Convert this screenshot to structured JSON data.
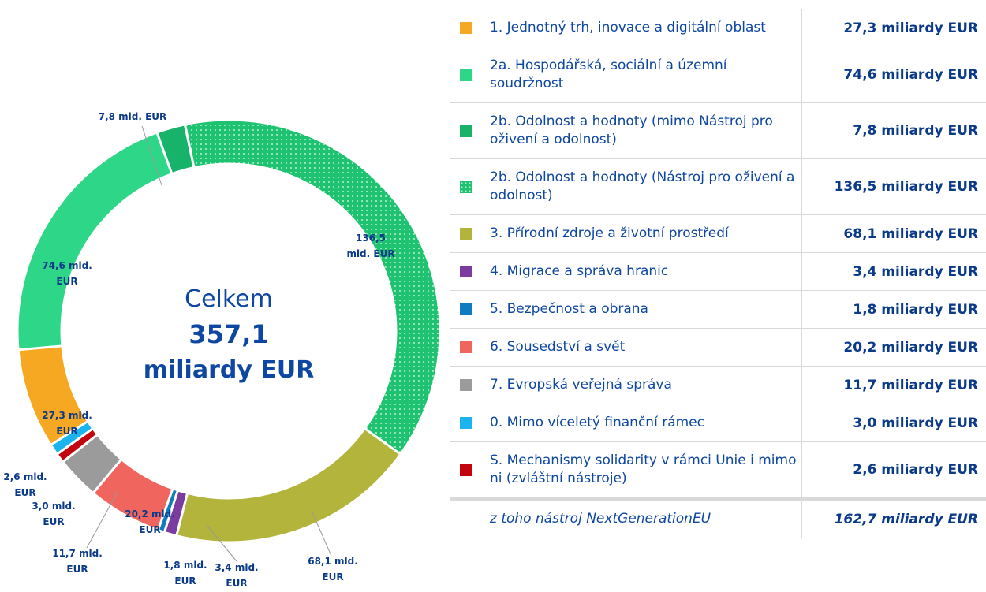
{
  "chart_data": {
    "type": "pie",
    "donut": true,
    "categories": [
      "1. Jednotný trh, inovace a digitální oblast",
      "2a. Hospodářská, sociální a územní soudržnost",
      "2b. Odolnost a hodnoty (mimo Nástroj pro oživení a odolnost)",
      "2b. Odolnost a hodnoty (Nástroj pro oživení a odolnost)",
      "3. Přírodní zdroje a životní prostředí",
      "4. Migrace a správa hranic",
      "5. Bezpečnost a obrana",
      "6. Sousedství a svět",
      "7. Evropská veřejná správa",
      "0. Mimo víceletý finanční rámec",
      "S. Mechanismy solidarity v rámci Unie i mimo ni (zvláštní nástroje)"
    ],
    "values": [
      27.3,
      74.6,
      7.8,
      136.5,
      68.1,
      3.4,
      1.8,
      20.2,
      11.7,
      3.0,
      2.6
    ],
    "value_labels": [
      "27,3 mld. EUR",
      "74,6 mld. EUR",
      "7,8 mld. EUR",
      "136,5 mld. EUR",
      "68,1 mld. EUR",
      "3,4 mld. EUR",
      "1,8 mld. EUR",
      "20,2 mld. EUR",
      "11,7 mld. EUR",
      "3,0 mld. EUR",
      "2,6 mld. EUR"
    ],
    "legend_value_labels": [
      "27,3 miliardy EUR",
      "74,6 miliardy EUR",
      "7,8 miliardy EUR",
      "136,5 miliardy EUR",
      "68,1 miliardy EUR",
      "3,4 miliardy EUR",
      "1,8 miliardy EUR",
      "20,2 miliardy EUR",
      "11,7 miliardy EUR",
      "3,0 miliardy EUR",
      "2,6 miliardy EUR"
    ],
    "colors": [
      "#f7a823",
      "#2ed688",
      "#17b36b",
      "#1fc271",
      "#b3b43b",
      "#7b3b9f",
      "#0f7cc0",
      "#f0665f",
      "#9b9b9b",
      "#1bb4ee",
      "#c2050f"
    ],
    "patterns": [
      null,
      null,
      null,
      "dots",
      null,
      null,
      null,
      null,
      null,
      null,
      null
    ],
    "center_title": "Celkem",
    "total": {
      "value": 357.1,
      "label": "357,1"
    },
    "total_unit": "miliardy EUR",
    "footer_label": "z toho nástroj NextGenerationEU",
    "footer_value": {
      "value": 162.7,
      "label": "162,7 miliardy EUR"
    }
  }
}
